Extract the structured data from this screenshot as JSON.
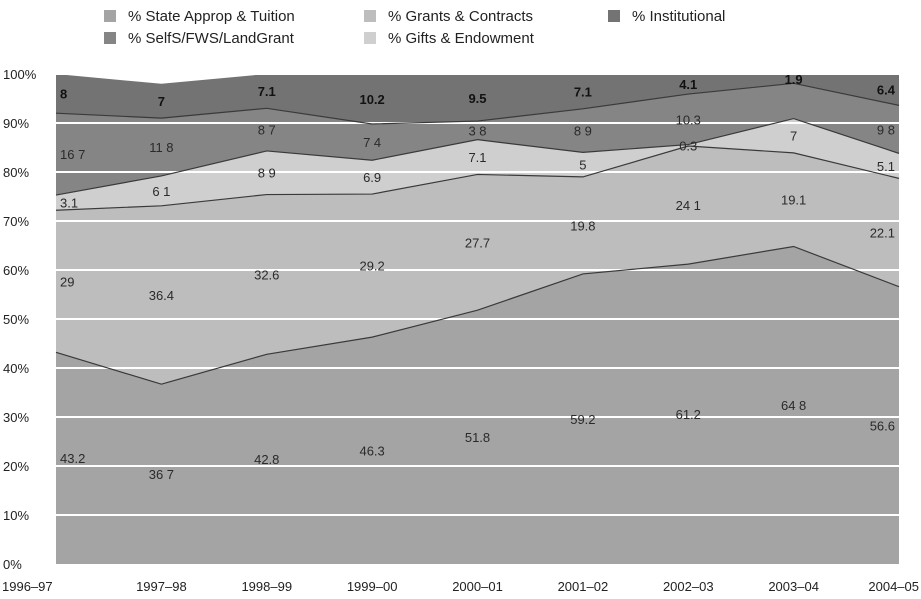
{
  "chart_data": {
    "type": "area",
    "stacked": true,
    "categories": [
      "1996–97",
      "1997–98",
      "1998–99",
      "1999–00",
      "2000–01",
      "2001–02",
      "2002–03",
      "2003–04",
      "2004–05"
    ],
    "yticks": [
      "0%",
      "10%",
      "20%",
      "30%",
      "40%",
      "50%",
      "60%",
      "70%",
      "80%",
      "90%",
      "100%"
    ],
    "ylim": [
      0,
      100
    ],
    "grid": true,
    "legend_position": "top",
    "series": [
      {
        "name": "% State Approp & Tuition",
        "key": "state",
        "color": "#a4a4a4",
        "values": [
          43.2,
          36.7,
          42.8,
          46.3,
          51.8,
          59.2,
          61.2,
          64.8,
          56.6
        ],
        "labels": [
          "43.2",
          "36 7",
          "42.8",
          "46.3",
          "51.8",
          "59.2",
          "61.2",
          "64 8",
          "56.6"
        ]
      },
      {
        "name": "% Grants & Contracts",
        "key": "grants",
        "color": "#bdbdbd",
        "values": [
          29,
          36.4,
          32.6,
          29.2,
          27.7,
          19.8,
          24.1,
          19.1,
          22.1
        ],
        "labels": [
          "29",
          "36.4",
          "32.6",
          "29.2",
          "27.7",
          "19.8",
          "24 1",
          "19.1",
          "22.1"
        ]
      },
      {
        "name": "% Gifts & Endowment",
        "key": "gifts",
        "color": "#cfcfcf",
        "values": [
          3.1,
          6.1,
          8.9,
          6.9,
          7.1,
          5,
          0.3,
          7,
          5.1
        ],
        "labels": [
          "3.1",
          "6 1",
          "8 9",
          "6.9",
          "7.1",
          "5",
          "0.3",
          "7",
          "5.1"
        ]
      },
      {
        "name": "% SelfS/FWS/LandGrant",
        "key": "self",
        "color": "#858585",
        "values": [
          16.7,
          11.8,
          8.7,
          7.4,
          3.8,
          8.9,
          10.3,
          7.2,
          9.8
        ],
        "labels": [
          "16 7",
          "11 8",
          "8 7",
          "7 4",
          "3 8",
          "8 9",
          "10.3",
          "",
          "9 8"
        ]
      },
      {
        "name": "% Institutional",
        "key": "inst",
        "color": "#737373",
        "values": [
          8,
          7,
          7.1,
          10.2,
          9.5,
          7.1,
          4.1,
          1.9,
          6.4
        ],
        "labels": [
          "8",
          "7",
          "7.1",
          "10.2",
          "9.5",
          "7.1",
          "4.1",
          "1.9",
          "6.4"
        ]
      }
    ]
  }
}
